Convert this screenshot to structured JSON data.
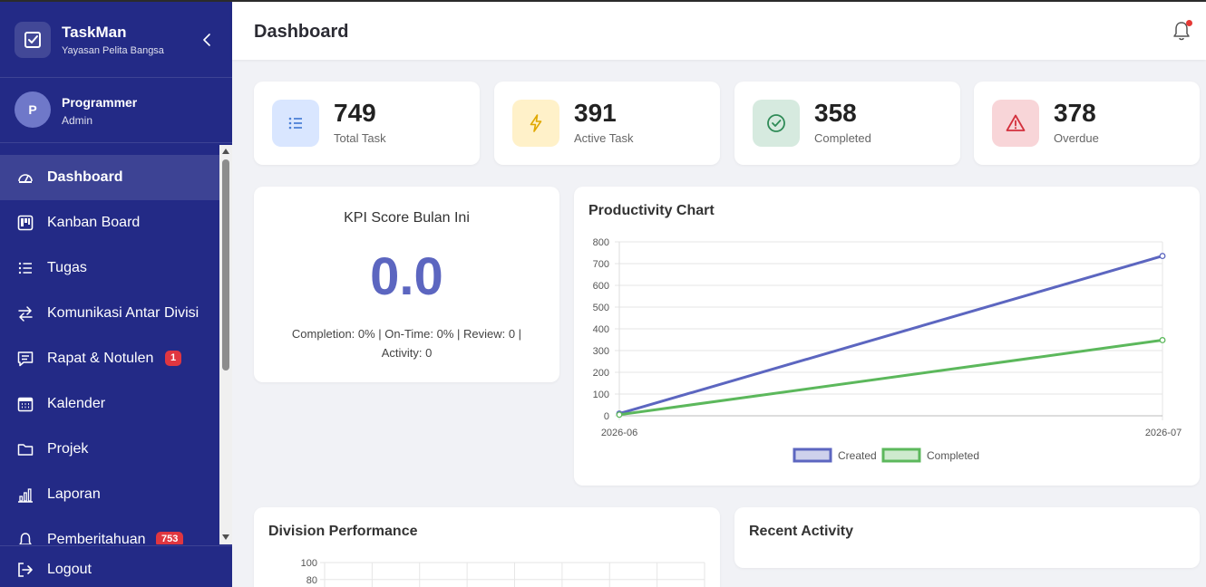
{
  "brand": {
    "title": "TaskMan",
    "subtitle": "Yayasan Pelita Bangsa"
  },
  "user": {
    "initial": "P",
    "name": "Programmer",
    "role": "Admin"
  },
  "nav": [
    {
      "label": "Dashboard",
      "icon": "gauge-icon",
      "active": true
    },
    {
      "label": "Kanban Board",
      "icon": "kanban-icon"
    },
    {
      "label": "Tugas",
      "icon": "list-icon"
    },
    {
      "label": "Komunikasi Antar Divisi",
      "icon": "arrows-exchange-icon"
    },
    {
      "label": "Rapat & Notulen",
      "icon": "chat-square-icon",
      "badge": "1"
    },
    {
      "label": "Kalender",
      "icon": "calendar-icon"
    },
    {
      "label": "Projek",
      "icon": "folder-icon"
    },
    {
      "label": "Laporan",
      "icon": "bar-chart-icon"
    },
    {
      "label": "Pemberitahuan",
      "icon": "bell-icon",
      "badge": "753"
    }
  ],
  "logout_label": "Logout",
  "header": {
    "title": "Dashboard"
  },
  "stats": [
    {
      "value": "749",
      "label": "Total Task",
      "icon": "list-icon",
      "color": "#4a7fd6",
      "bg": "#d9e6ff"
    },
    {
      "value": "391",
      "label": "Active Task",
      "icon": "lightning-icon",
      "color": "#e0a800",
      "bg": "#fff1c9"
    },
    {
      "value": "358",
      "label": "Completed",
      "icon": "check-circle-icon",
      "color": "#2f8b57",
      "bg": "#d6eadf"
    },
    {
      "value": "378",
      "label": "Overdue",
      "icon": "warning-icon",
      "color": "#d32f3c",
      "bg": "#f8d5d8"
    }
  ],
  "kpi": {
    "title": "KPI Score Bulan Ini",
    "score": "0.0",
    "detail": "Completion: 0% | On-Time: 0% | Review: 0 | Activity: 0"
  },
  "productivity": {
    "title": "Productivity Chart"
  },
  "division": {
    "title": "Division Performance"
  },
  "recent": {
    "title": "Recent Activity"
  },
  "chart_data": [
    {
      "type": "line",
      "title": "Productivity Chart",
      "x": [
        "2026-06",
        "2026-07"
      ],
      "series": [
        {
          "name": "Created",
          "values": [
            10,
            735
          ],
          "color": "#5c66c0"
        },
        {
          "name": "Completed",
          "values": [
            5,
            348
          ],
          "color": "#5cb85c"
        }
      ],
      "ylim": [
        0,
        800
      ],
      "yticks": [
        0,
        100,
        200,
        300,
        400,
        500,
        600,
        700,
        800
      ],
      "legend": "bottom",
      "grid": true
    },
    {
      "type": "bar",
      "title": "Division Performance",
      "ylim": [
        0,
        100
      ],
      "yticks": [
        80,
        100
      ],
      "grid": true
    }
  ]
}
